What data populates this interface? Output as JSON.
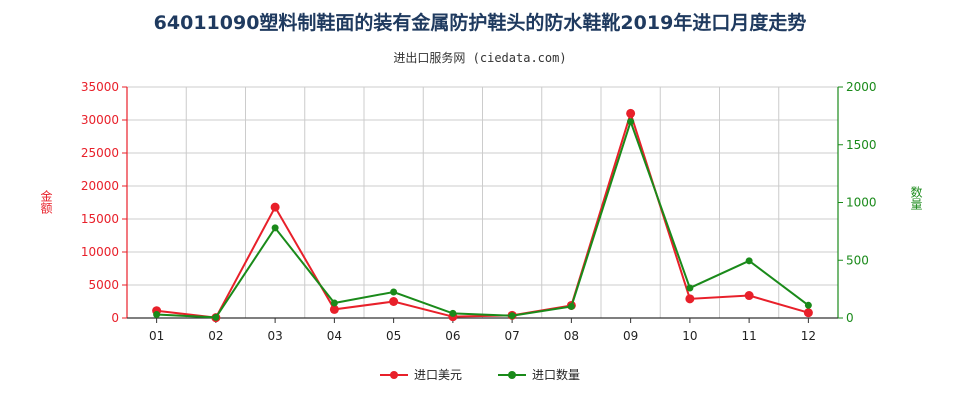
{
  "title": "64011090塑料制鞋面的装有金属防护鞋头的防水鞋靴2019年进口月度走势",
  "subtitle": "进出口服务网 (ciedata.com)",
  "colors": {
    "amount": "#e8202a",
    "quantity": "#1a8a1a",
    "grid": "#cccccc"
  },
  "chart_data": {
    "type": "line",
    "categories": [
      "01",
      "02",
      "03",
      "04",
      "05",
      "06",
      "07",
      "08",
      "09",
      "10",
      "11",
      "12"
    ],
    "y_left": {
      "label": "金额",
      "ylim": [
        0,
        35000
      ],
      "ticks": [
        "0",
        "5000",
        "10000",
        "15000",
        "20000",
        "25000",
        "30000",
        "35000"
      ]
    },
    "y_right": {
      "label": "数量",
      "ylim": [
        0,
        2000
      ],
      "ticks": [
        "0",
        "500",
        "1000",
        "1500",
        "2000"
      ]
    },
    "series": [
      {
        "name": "进口美元",
        "axis": "left",
        "values": [
          1100,
          50,
          16800,
          1300,
          2500,
          200,
          400,
          1900,
          31000,
          2900,
          3400,
          800
        ]
      },
      {
        "name": "进口数量",
        "axis": "right",
        "values": [
          30,
          5,
          780,
          130,
          225,
          40,
          20,
          100,
          1700,
          260,
          495,
          110
        ]
      }
    ],
    "grid": true,
    "legend_position": "bottom"
  }
}
